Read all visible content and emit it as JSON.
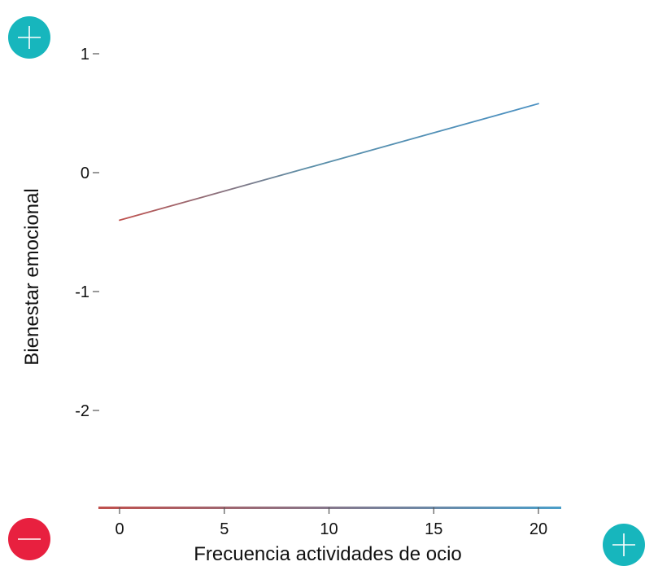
{
  "chart_data": {
    "type": "line",
    "xlabel": "Frecuencia actividades de ocio",
    "ylabel": "Bienestar emocional",
    "xlim": [
      -1,
      21
    ],
    "ylim": [
      -2.78,
      1.35
    ],
    "x_ticks": [
      0,
      5,
      10,
      15,
      20
    ],
    "x_tick_labels": [
      "0",
      "5",
      "10",
      "15",
      "20"
    ],
    "y_ticks": [
      1,
      0,
      -1,
      -2
    ],
    "y_tick_labels": [
      "1",
      "0",
      "-1",
      "-2"
    ],
    "grid": false,
    "series": [
      {
        "x": [
          0,
          20
        ],
        "y": [
          -0.4,
          0.58
        ],
        "color_start": "#c0504d",
        "color_end": "#4a90c2"
      }
    ]
  },
  "controls": {
    "zoom_in_top": {
      "icon": "plus-icon",
      "color": "#17b6bd"
    },
    "zoom_out": {
      "icon": "minus-icon",
      "color": "#e8203f"
    },
    "zoom_in_bottom": {
      "icon": "plus-icon",
      "color": "#17b6bd"
    }
  },
  "colors": {
    "axis_left_top": "#4a9ec9",
    "axis_left_bottom": "#c0504d",
    "axis_bottom_left": "#c0504d",
    "axis_bottom_right": "#4a9ec9"
  }
}
